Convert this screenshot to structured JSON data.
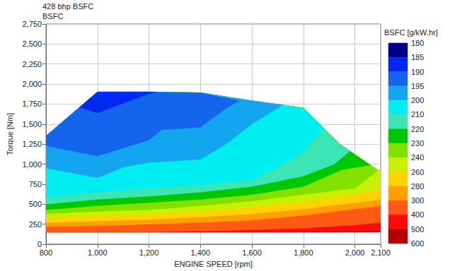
{
  "chart_data": {
    "type": "contour",
    "title": "428 bhp BSFC",
    "subtitle": "BSFC",
    "x_label": "ENGINE SPEED [rpm]",
    "y_label": "Torque [Nm]",
    "xlim": [
      800,
      2100
    ],
    "xticks": [
      800,
      1000,
      1200,
      1400,
      1600,
      1800,
      2000,
      2100
    ],
    "ylim": [
      0,
      2750
    ],
    "yticks": [
      0,
      250,
      500,
      750,
      1000,
      1250,
      1500,
      1750,
      2000,
      2250,
      2500,
      2750
    ],
    "grid": true,
    "full_load": {
      "x": [
        800,
        1000,
        1200,
        1400,
        1600,
        1800,
        1940,
        2100
      ],
      "y": [
        1350,
        1900,
        1900,
        1890,
        1790,
        1700,
        1250,
        900
      ]
    },
    "contours": [
      {
        "level": 600,
        "x": [
          800,
          2100
        ],
        "y": [
          150,
          150
        ]
      },
      {
        "level": 500,
        "x": [
          800,
          1700,
          2000,
          2100
        ],
        "y": [
          150,
          150,
          160,
          170
        ]
      },
      {
        "level": 400,
        "x": [
          800,
          1200,
          1500,
          1800,
          2000,
          2100
        ],
        "y": [
          150,
          155,
          170,
          200,
          240,
          270
        ]
      },
      {
        "level": 300,
        "x": [
          800,
          1000,
          1200,
          1400,
          1600,
          1800,
          2000,
          2100
        ],
        "y": [
          220,
          230,
          250,
          270,
          300,
          360,
          440,
          480
        ]
      },
      {
        "level": 280,
        "x": [
          800,
          1000,
          1200,
          1400,
          1600,
          1800,
          2000,
          2100
        ],
        "y": [
          270,
          290,
          310,
          340,
          380,
          440,
          520,
          560
        ]
      },
      {
        "level": 260,
        "x": [
          800,
          1000,
          1200,
          1400,
          1600,
          1800,
          2000,
          2100
        ],
        "y": [
          330,
          350,
          370,
          410,
          460,
          530,
          620,
          700
        ]
      },
      {
        "level": 240,
        "x": [
          800,
          1000,
          1200,
          1400,
          1600,
          1800,
          2000,
          2090
        ],
        "y": [
          380,
          410,
          430,
          480,
          540,
          620,
          700,
          922
        ]
      },
      {
        "level": 230,
        "x": [
          800,
          1000,
          1200,
          1400,
          1600,
          1800,
          1950,
          2060
        ],
        "y": [
          430,
          480,
          520,
          560,
          620,
          720,
          930,
          988
        ]
      },
      {
        "level": 220,
        "x": [
          800,
          1000,
          1200,
          1400,
          1600,
          1800,
          1920,
          1980
        ],
        "y": [
          500,
          560,
          600,
          650,
          720,
          850,
          1000,
          1162
        ]
      },
      {
        "level": 210,
        "x": [
          800,
          1000,
          1200,
          1400,
          1600,
          1700,
          1800,
          1880
        ],
        "y": [
          580,
          650,
          700,
          740,
          800,
          950,
          1150,
          1443
        ]
      },
      {
        "level": 200,
        "x": [
          800,
          1000,
          1100,
          1200,
          1400,
          1500,
          1600,
          1720
        ],
        "y": [
          950,
          830,
          960,
          1020,
          1060,
          1250,
          1500,
          1740
        ]
      },
      {
        "level": 195,
        "x": [
          800,
          1000,
          1100,
          1200,
          1250,
          1400,
          1500,
          1550
        ],
        "y": [
          1230,
          1100,
          1200,
          1300,
          1430,
          1460,
          1700,
          1790
        ]
      },
      {
        "level": 190,
        "x": [
          930,
          1000,
          1200,
          1230
        ],
        "y": [
          1707,
          1640,
          1880,
          1900
        ]
      }
    ],
    "colorbar": {
      "title": "BSFC [g/kW.hr]",
      "range": [
        180,
        600
      ],
      "ticks": [
        180,
        185,
        190,
        195,
        200,
        210,
        220,
        230,
        240,
        260,
        280,
        300,
        400,
        500,
        600
      ],
      "colors": [
        "#00008c",
        "#0028f0",
        "#1464ee",
        "#14a5f0",
        "#00eef2",
        "#3ce6b4",
        "#00c800",
        "#82e100",
        "#c8f000",
        "#ffd200",
        "#ffa000",
        "#ff5a14",
        "#ff0a0a",
        "#b40000"
      ]
    }
  }
}
